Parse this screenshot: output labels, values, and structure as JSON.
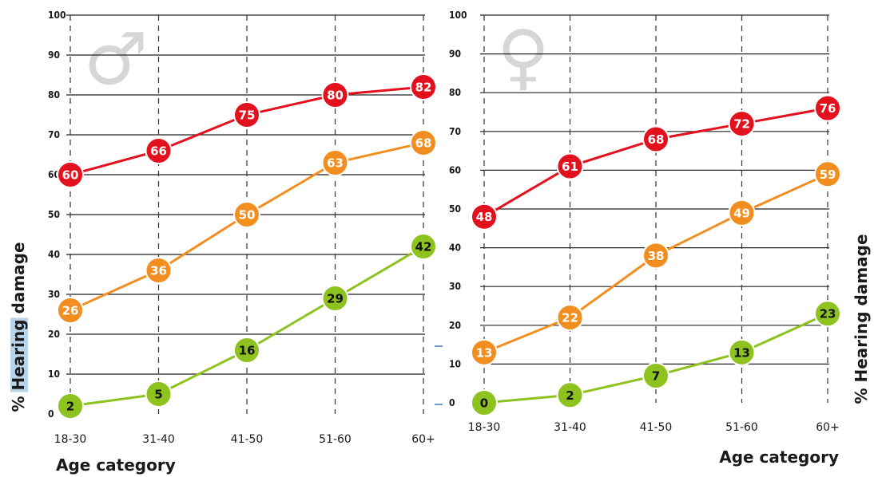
{
  "colors": {
    "severe": "#e3101e",
    "moderate": "#f28e1f",
    "mild": "#8dc21f",
    "symbol": "#d6d6d6",
    "highlight": "#b9d3ea",
    "accent_mark": "#6f9bd1"
  },
  "chart_data": [
    {
      "type": "line",
      "panel": "male",
      "symbol": "♂",
      "categories": [
        "18-30",
        "31-40",
        "41-50",
        "51-60",
        "60+"
      ],
      "ylim": [
        0,
        100
      ],
      "yticks": [
        "0",
        "10",
        "20",
        "30",
        "40",
        "50",
        "60",
        "70",
        "80",
        "90",
        "100"
      ],
      "ylabel_prefix": "% ",
      "ylabel_word": "Hearing",
      "ylabel_suffix": " damage",
      "xlabel": "Age category",
      "grid": true,
      "series": [
        {
          "key": "severe",
          "values": [
            60,
            66,
            75,
            80,
            82
          ]
        },
        {
          "key": "moderate",
          "values": [
            26,
            36,
            50,
            63,
            68
          ]
        },
        {
          "key": "mild",
          "values": [
            2,
            5,
            16,
            29,
            42
          ]
        }
      ]
    },
    {
      "type": "line",
      "panel": "female",
      "symbol": "♀",
      "categories": [
        "18-30",
        "31-40",
        "41-50",
        "51-60",
        "60+"
      ],
      "ylim": [
        0,
        100
      ],
      "yticks": [
        "0",
        "10",
        "20",
        "30",
        "40",
        "50",
        "60",
        "70",
        "80",
        "90",
        "100"
      ],
      "ylabel": "% Hearing damage",
      "xlabel": "Age category",
      "grid": true,
      "series": [
        {
          "key": "severe",
          "values": [
            48,
            61,
            68,
            72,
            76
          ]
        },
        {
          "key": "moderate",
          "values": [
            13,
            22,
            38,
            49,
            59
          ]
        },
        {
          "key": "mild",
          "values": [
            0,
            2,
            7,
            13,
            23
          ]
        }
      ]
    }
  ]
}
